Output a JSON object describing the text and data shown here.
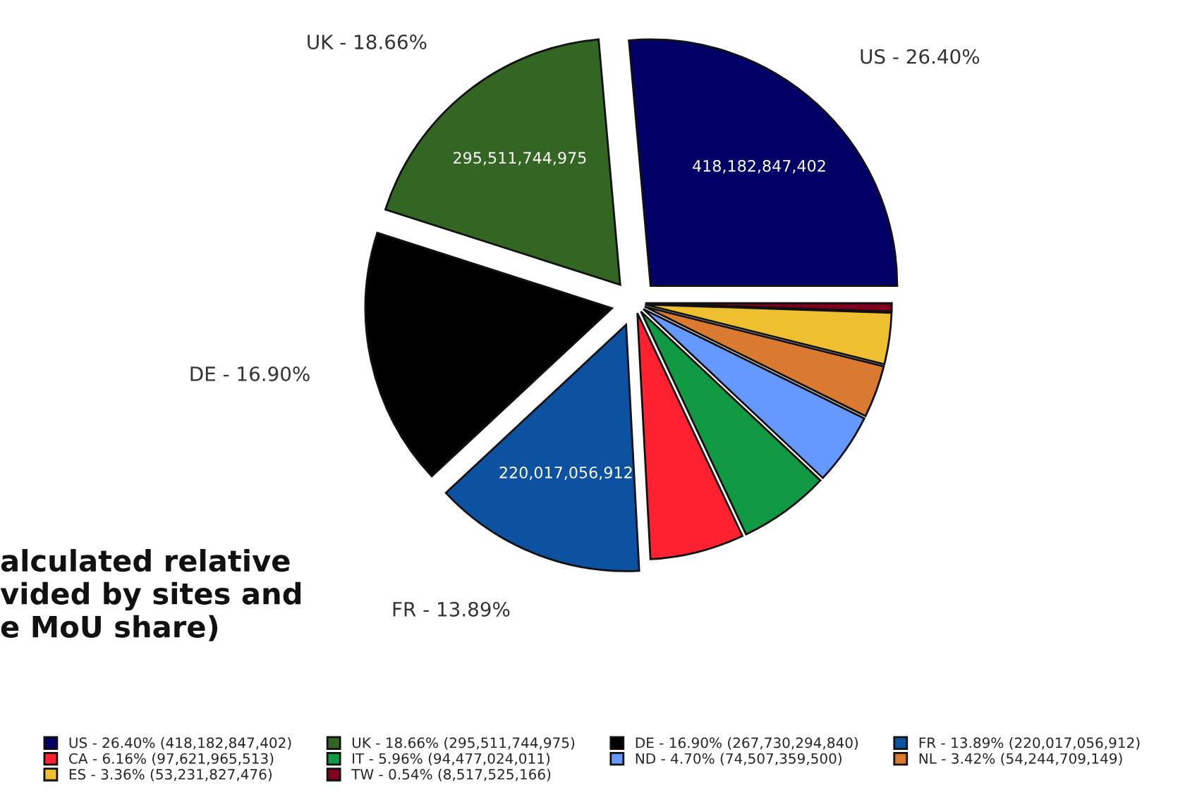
{
  "chart_data": {
    "type": "pie",
    "categories": [
      "US - 26.40% (418,182,847,402)",
      "UK - 18.66% (295,511,744,975)",
      "DE - 16.90% (267,730,294,840)",
      "FR - 13.89% (220,017,056,912)",
      "CA - 6.16% (97,621,965,513)",
      "IT - 5.96% (94,477,024,011)",
      "ND - 4.70% (74,507,359,500)",
      "NL - 3.42% (54,244,709,149)",
      "ES - 3.36% (53,231,827,476)",
      "TW - 0.54% (8,517,525,166)"
    ],
    "values": [
      418182847402,
      295511744975,
      267730294840,
      220017056912,
      97621965513,
      94477024011,
      74507359500,
      54244709149,
      53231827476,
      8517525166
    ],
    "colors": [
      "#000066",
      "#336622",
      "#000000",
      "#0d52a0",
      "#ff2030",
      "#119944",
      "#6699ff",
      "#d97a30",
      "#eec030",
      "#800020"
    ],
    "value_labels": [
      "418,182,847,402",
      "295,511,744,975",
      null,
      "220,017,056,912",
      null,
      null,
      null,
      null,
      null,
      null
    ],
    "annotations": [
      "US - 26.40%",
      "UK - 18.66%",
      "DE - 16.90%",
      "FR - 13.89%",
      "alculated relative\nvided by sites and\ne MoU share)"
    ],
    "legend": "bottom"
  }
}
